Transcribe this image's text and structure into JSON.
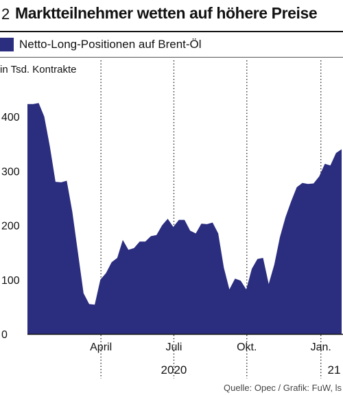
{
  "header": {
    "number": "2",
    "title": "Marktteilnehmer wetten auf höhere Preise"
  },
  "legend": {
    "label": "Netto-Long-Positionen auf Brent-Öl",
    "color": "#2b2d7f"
  },
  "unit_label": "in Tsd. Kontrakte",
  "source": "Quelle: Opec / Grafik: FuW, ls",
  "chart_data": {
    "type": "area",
    "title": "Marktteilnehmer wetten auf höhere Preise",
    "ylabel": "in Tsd. Kontrakte",
    "ylim": [
      0,
      400
    ],
    "yticks": [
      0,
      100,
      200,
      300,
      400
    ],
    "grid": "vertical dotted at month markers",
    "x_month_ticks": [
      {
        "label": "April",
        "week": 13.1
      },
      {
        "label": "Juli",
        "week": 26.1
      },
      {
        "label": "Okt.",
        "week": 39.1
      },
      {
        "label": "Jan.",
        "week": 52.3
      }
    ],
    "year_labels": [
      {
        "label": "2020",
        "week": 26.1
      },
      {
        "label": "21",
        "week": 54.0
      }
    ],
    "xlim": [
      0,
      56
    ],
    "series": [
      {
        "name": "Netto-Long-Positionen auf Brent-Öl",
        "color": "#2b2d7f",
        "x": [
          0,
          1,
          2,
          3,
          4,
          5,
          6,
          7,
          8,
          9,
          10,
          11,
          12,
          13,
          14,
          15,
          16,
          17,
          18,
          19,
          20,
          21,
          22,
          23,
          24,
          25,
          26,
          27,
          28,
          29,
          30,
          31,
          32,
          33,
          34,
          35,
          36,
          37,
          38,
          39,
          40,
          41,
          42,
          43,
          44,
          45,
          46,
          47,
          48,
          49,
          50,
          51,
          52,
          53,
          54,
          55,
          56
        ],
        "values": [
          423,
          423,
          425,
          400,
          345,
          280,
          279,
          282,
          225,
          150,
          75,
          55,
          54,
          100,
          112,
          132,
          140,
          173,
          155,
          158,
          170,
          170,
          180,
          182,
          200,
          212,
          197,
          210,
          210,
          190,
          185,
          203,
          202,
          205,
          185,
          122,
          82,
          102,
          98,
          82,
          120,
          138,
          140,
          92,
          128,
          178,
          215,
          244,
          270,
          278,
          276,
          277,
          290,
          313,
          310,
          333,
          340
        ]
      }
    ]
  }
}
